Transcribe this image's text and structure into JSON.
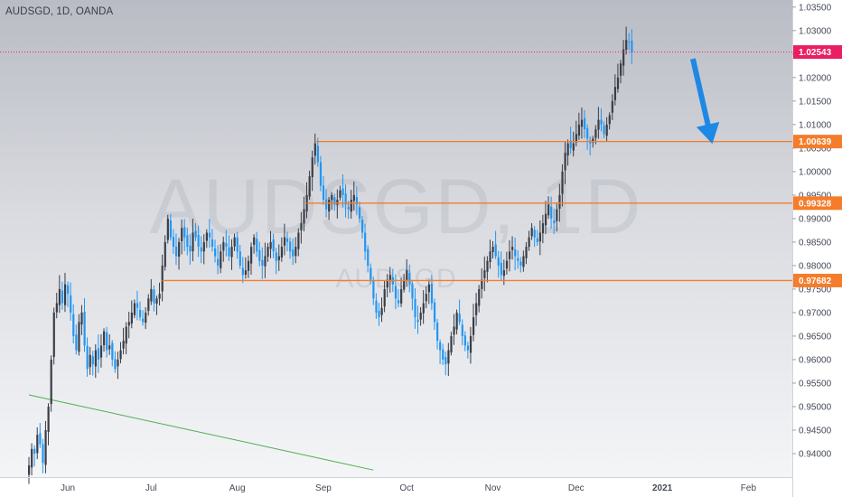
{
  "header": {
    "symbol": "AUDSGD, 1D, OANDA"
  },
  "watermark": {
    "main": "AUDSGD, 1D",
    "sub": "AUDSGD"
  },
  "colors": {
    "up": "#3a3d46",
    "down": "#2196f3",
    "level": "#f57c2b",
    "current": "#e91e63",
    "trendline": "#4caf50",
    "arrow": "#1e88e5"
  },
  "chart_data": {
    "type": "candlestick",
    "ylim": [
      0.935,
      1.0365
    ],
    "y_ticks": [
      "1.03500",
      "1.03000",
      "1.02500",
      "1.02000",
      "1.01500",
      "1.01000",
      "1.00500",
      "1.00000",
      "0.99500",
      "0.99000",
      "0.98500",
      "0.98000",
      "0.97500",
      "0.97000",
      "0.96500",
      "0.96000",
      "0.95500",
      "0.95000",
      "0.94500",
      "0.94000"
    ],
    "x_ticks": [
      {
        "label": "Jun",
        "day": 14
      },
      {
        "label": "Jul",
        "day": 44
      },
      {
        "label": "Aug",
        "day": 75
      },
      {
        "label": "Sep",
        "day": 106
      },
      {
        "label": "Oct",
        "day": 136
      },
      {
        "label": "Nov",
        "day": 167
      },
      {
        "label": "Dec",
        "day": 197
      },
      {
        "label": "2021",
        "day": 228,
        "bold": true
      },
      {
        "label": "Feb",
        "day": 259
      }
    ],
    "levels": [
      {
        "value": 1.00639,
        "label": "1.00639"
      },
      {
        "value": 0.99328,
        "label": "0.99328"
      },
      {
        "value": 0.97682,
        "label": "0.97682"
      }
    ],
    "current_price": {
      "value": 1.02543,
      "label": "1.02543"
    },
    "trendline": [
      {
        "day": 0,
        "price": 0.9525
      },
      {
        "day": 124,
        "price": 0.9365
      }
    ],
    "arrow": {
      "from": {
        "day": 239,
        "price": 1.024
      },
      "to": {
        "day": 246,
        "price": 1.0059
      }
    },
    "close": [
      0.9375,
      0.941,
      0.94,
      0.944,
      0.942,
      0.938,
      0.945,
      0.95,
      0.96,
      0.97,
      0.972,
      0.975,
      0.972,
      0.976,
      0.974,
      0.97,
      0.965,
      0.962,
      0.968,
      0.97,
      0.963,
      0.958,
      0.961,
      0.959,
      0.962,
      0.96,
      0.963,
      0.966,
      0.962,
      0.963,
      0.96,
      0.958,
      0.96,
      0.962,
      0.964,
      0.967,
      0.968,
      0.97,
      0.972,
      0.971,
      0.969,
      0.968,
      0.97,
      0.973,
      0.975,
      0.972,
      0.973,
      0.974,
      0.98,
      0.985,
      0.99,
      0.986,
      0.984,
      0.982,
      0.985,
      0.988,
      0.986,
      0.984,
      0.983,
      0.987,
      0.986,
      0.984,
      0.983,
      0.985,
      0.987,
      0.986,
      0.984,
      0.982,
      0.98,
      0.983,
      0.985,
      0.984,
      0.982,
      0.984,
      0.986,
      0.983,
      0.98,
      0.978,
      0.979,
      0.981,
      0.984,
      0.986,
      0.983,
      0.981,
      0.98,
      0.982,
      0.984,
      0.985,
      0.983,
      0.981,
      0.982,
      0.984,
      0.986,
      0.985,
      0.983,
      0.982,
      0.984,
      0.987,
      0.989,
      0.992,
      0.995,
      0.999,
      1.003,
      1.006,
      1.002,
      0.997,
      0.994,
      0.992,
      0.994,
      0.995,
      0.993,
      0.994,
      0.996,
      0.995,
      0.993,
      0.992,
      0.994,
      0.995,
      0.993,
      0.99,
      0.987,
      0.983,
      0.98,
      0.977,
      0.973,
      0.97,
      0.969,
      0.971,
      0.975,
      0.977,
      0.978,
      0.976,
      0.973,
      0.972,
      0.975,
      0.977,
      0.979,
      0.976,
      0.973,
      0.969,
      0.968,
      0.97,
      0.972,
      0.974,
      0.976,
      0.972,
      0.968,
      0.964,
      0.962,
      0.96,
      0.959,
      0.962,
      0.965,
      0.967,
      0.97,
      0.968,
      0.965,
      0.963,
      0.962,
      0.965,
      0.969,
      0.972,
      0.975,
      0.977,
      0.979,
      0.981,
      0.983,
      0.984,
      0.982,
      0.98,
      0.978,
      0.979,
      0.981,
      0.983,
      0.984,
      0.982,
      0.981,
      0.98,
      0.982,
      0.984,
      0.986,
      0.988,
      0.986,
      0.985,
      0.987,
      0.989,
      0.991,
      0.993,
      0.99,
      0.989,
      0.992,
      0.995,
      1.0,
      1.004,
      1.006,
      1.005,
      1.006,
      1.008,
      1.01,
      1.011,
      1.009,
      1.007,
      1.006,
      1.007,
      1.009,
      1.011,
      1.01,
      1.008,
      1.01,
      1.012,
      1.015,
      1.018,
      1.02,
      1.023,
      1.026,
      1.028,
      1.0275,
      1.0254
    ]
  }
}
